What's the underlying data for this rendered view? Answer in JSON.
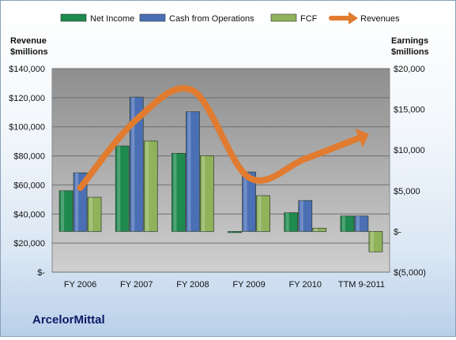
{
  "chart_data": {
    "type": "bar",
    "categories": [
      "FY 2006",
      "FY 2007",
      "FY 2008",
      "FY 2009",
      "FY 2010",
      "TTM 9-2011"
    ],
    "series": [
      {
        "name": "Net Income",
        "axis": "right",
        "color": "#1e8a4e",
        "values": [
          5000,
          10500,
          9600,
          -100,
          2300,
          1900
        ]
      },
      {
        "name": "Cash from Operations",
        "axis": "right",
        "color": "#4a6fb5",
        "values": [
          7200,
          16500,
          14700,
          7300,
          3800,
          1900
        ]
      },
      {
        "name": "FCF",
        "axis": "right",
        "color": "#8fb25a",
        "values": [
          4200,
          11100,
          9300,
          4400,
          400,
          -2500
        ]
      }
    ],
    "line_series": {
      "name": "Revenues",
      "axis": "left",
      "color": "#e07b30",
      "values": [
        58000,
        105000,
        124900,
        65100,
        78000,
        93000
      ]
    },
    "ylabel_left": "Revenue\n$millions",
    "ylabel_right": "Earnings\n$millions",
    "ylim_left": [
      0,
      140000
    ],
    "ylim_right": [
      -5000,
      20000
    ],
    "yticks_left": [
      "$-",
      "$20,000",
      "$40,000",
      "$60,000",
      "$80,000",
      "$100,000",
      "$120,000",
      "$140,000"
    ],
    "yticks_right": [
      "$(5,000)",
      "$-",
      "$5,000",
      "$10,000",
      "$15,000",
      "$20,000"
    ],
    "legend_position": "top",
    "grid": true
  },
  "company": "ArcelorMittal"
}
